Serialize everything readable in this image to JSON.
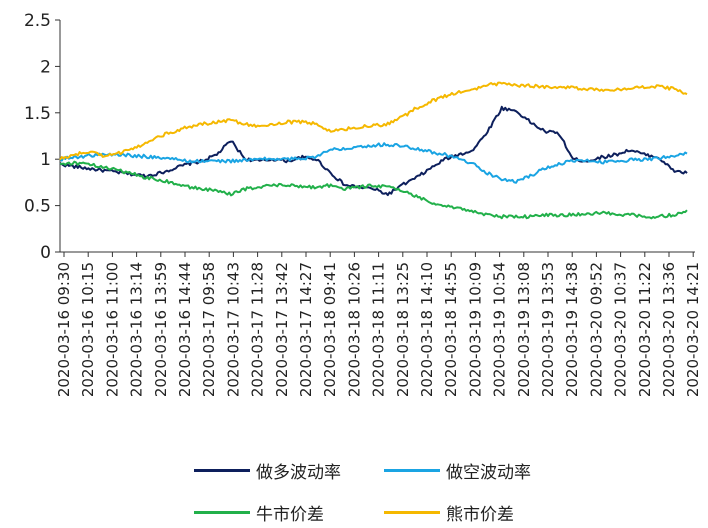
{
  "chart_data": {
    "type": "line",
    "title": "",
    "xlabel": "",
    "ylabel": "",
    "ylim": [
      0,
      2.5
    ],
    "y_ticks": [
      "0",
      "0.5",
      "1",
      "1.5",
      "2",
      "2.5"
    ],
    "x_ticks": [
      "2020-03-16 09:30",
      "2020-03-16 10:15",
      "2020-03-16 11:00",
      "2020-03-16 13:14",
      "2020-03-16 13:59",
      "2020-03-16 14:44",
      "2020-03-17 09:58",
      "2020-03-17 10:43",
      "2020-03-17 11:28",
      "2020-03-17 13:42",
      "2020-03-17 14:27",
      "2020-03-18 09:41",
      "2020-03-18 10:26",
      "2020-03-18 11:11",
      "2020-03-18 13:25",
      "2020-03-18 14:10",
      "2020-03-18 14:55",
      "2020-03-19 10:09",
      "2020-03-19 10:54",
      "2020-03-19 13:08",
      "2020-03-19 13:53",
      "2020-03-19 14:38",
      "2020-03-20 09:52",
      "2020-03-20 10:37",
      "2020-03-20 11:22",
      "2020-03-20 13:36",
      "2020-03-20 14:21"
    ],
    "grid": false,
    "legend_position": "bottom",
    "series": [
      {
        "name": "做多波动率",
        "color": "#0d1f5c",
        "values": [
          0.95,
          0.92,
          0.9,
          0.88,
          0.86,
          0.84,
          0.82,
          0.85,
          0.9,
          0.95,
          0.98,
          1.05,
          1.2,
          1.0,
          0.98,
          1.0,
          0.98,
          1.02,
          1.0,
          0.85,
          0.72,
          0.7,
          0.68,
          0.62,
          0.72,
          0.8,
          0.9,
          1.0,
          1.05,
          1.1,
          1.3,
          1.55,
          1.52,
          1.4,
          1.3,
          1.28,
          1.0,
          0.98,
          1.02,
          1.05,
          1.1,
          1.05,
          1.02,
          0.88,
          0.85
        ]
      },
      {
        "name": "做空波动率",
        "color": "#1aa4e3",
        "values": [
          1.0,
          1.02,
          1.04,
          1.05,
          1.05,
          1.04,
          1.03,
          1.02,
          1.0,
          0.98,
          0.98,
          0.98,
          0.98,
          0.99,
          1.0,
          1.0,
          1.0,
          1.01,
          1.03,
          1.1,
          1.12,
          1.14,
          1.15,
          1.16,
          1.14,
          1.12,
          1.08,
          1.05,
          1.0,
          0.95,
          0.85,
          0.78,
          0.76,
          0.82,
          0.9,
          0.95,
          0.98,
          0.98,
          0.97,
          0.98,
          0.99,
          1.0,
          1.01,
          1.04,
          1.06
        ]
      },
      {
        "name": "牛市价差",
        "color": "#22b04a",
        "values": [
          0.95,
          0.96,
          0.94,
          0.92,
          0.88,
          0.85,
          0.8,
          0.78,
          0.74,
          0.7,
          0.68,
          0.66,
          0.62,
          0.68,
          0.7,
          0.72,
          0.72,
          0.7,
          0.7,
          0.72,
          0.68,
          0.7,
          0.72,
          0.7,
          0.66,
          0.6,
          0.54,
          0.5,
          0.47,
          0.44,
          0.4,
          0.38,
          0.38,
          0.38,
          0.4,
          0.4,
          0.4,
          0.41,
          0.42,
          0.41,
          0.4,
          0.38,
          0.38,
          0.4,
          0.45
        ]
      },
      {
        "name": "熊市价差",
        "color": "#f5b800",
        "values": [
          1.0,
          1.05,
          1.08,
          1.04,
          1.06,
          1.1,
          1.18,
          1.25,
          1.3,
          1.35,
          1.38,
          1.4,
          1.42,
          1.38,
          1.36,
          1.38,
          1.4,
          1.4,
          1.38,
          1.3,
          1.32,
          1.35,
          1.36,
          1.38,
          1.45,
          1.55,
          1.62,
          1.68,
          1.72,
          1.75,
          1.8,
          1.82,
          1.8,
          1.79,
          1.78,
          1.78,
          1.77,
          1.76,
          1.75,
          1.75,
          1.76,
          1.78,
          1.78,
          1.76,
          1.7
        ]
      }
    ]
  }
}
